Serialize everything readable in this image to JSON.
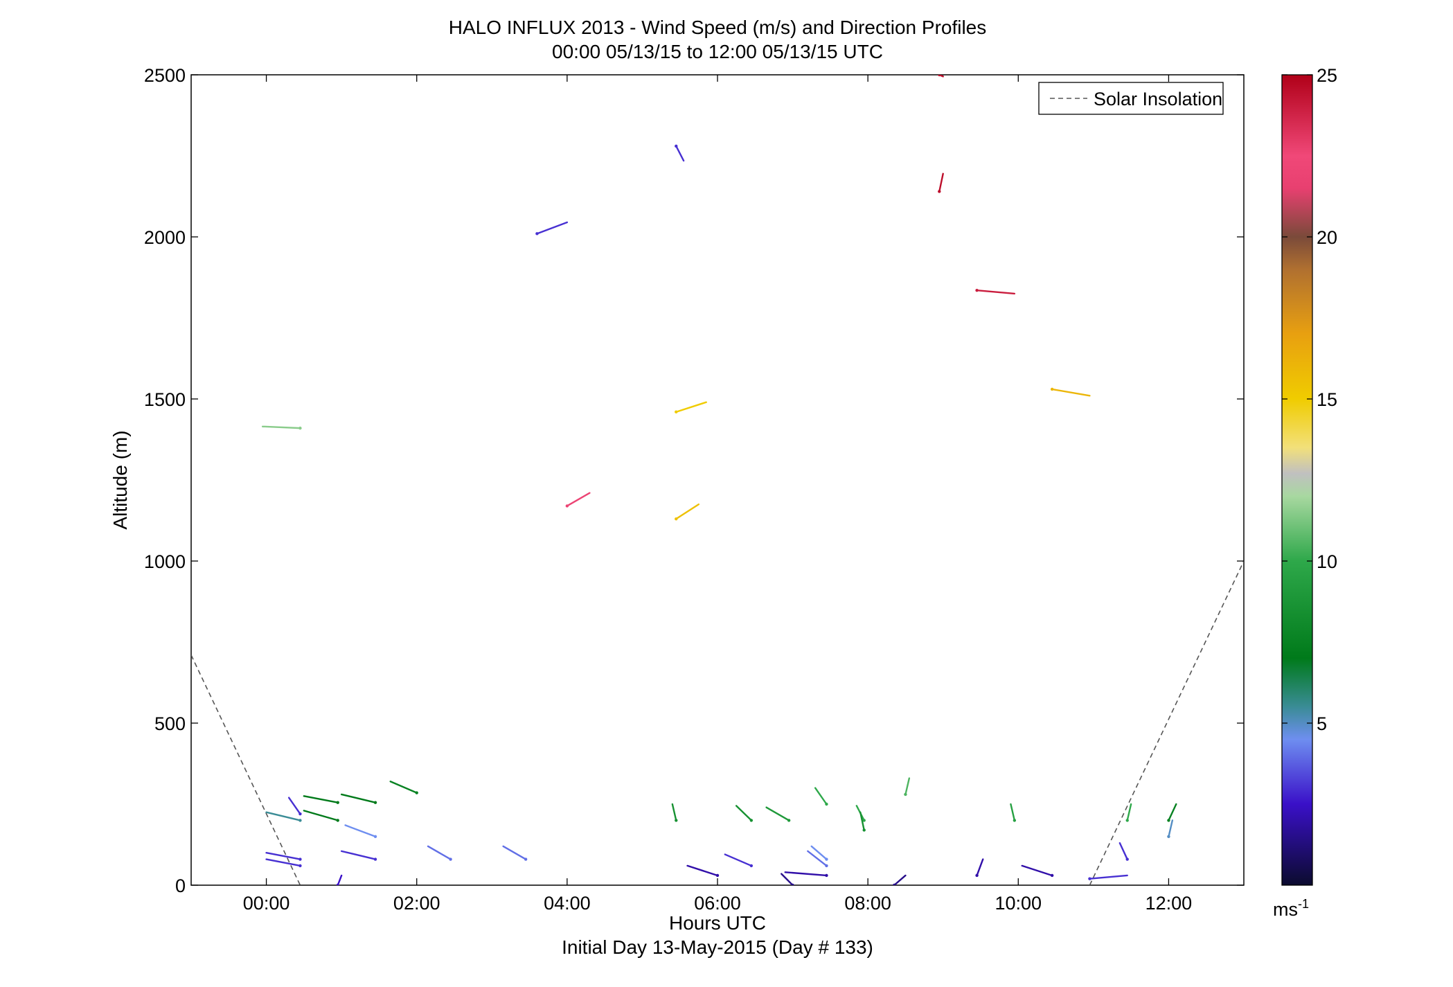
{
  "chart_data": {
    "type": "wind-barb-profile",
    "title": "HALO INFLUX 2013 - Wind Speed (m/s) and Direction Profiles",
    "subtitle": "00:00 05/13/15 to 12:00 05/13/15  UTC",
    "xlabel": "Hours UTC",
    "xlabel2": "Initial Day 13-May-2015 (Day # 133)",
    "ylabel": "Altitude (m)",
    "xlim": [
      -1,
      13
    ],
    "ylim": [
      0,
      2500
    ],
    "x_ticks": [
      0,
      2,
      4,
      6,
      8,
      10,
      12
    ],
    "x_tick_labels": [
      "00:00",
      "02:00",
      "04:00",
      "06:00",
      "08:00",
      "10:00",
      "12:00"
    ],
    "y_ticks": [
      0,
      500,
      1000,
      1500,
      2000,
      2500
    ],
    "y_tick_labels": [
      "0",
      "500",
      "1000",
      "1500",
      "2000",
      "2500"
    ],
    "grid": false,
    "legend": {
      "label": "Solar Insolation",
      "placement": "top-right",
      "style": "dashed",
      "color": "#555555"
    },
    "colorbar": {
      "range": [
        0,
        25
      ],
      "ticks": [
        5,
        10,
        15,
        20,
        25
      ],
      "tick_labels": [
        "5",
        "10",
        "15",
        "20",
        "25"
      ],
      "units": "ms-1",
      "stops": [
        {
          "value": 0,
          "color": "#0b0b2e"
        },
        {
          "value": 2.5,
          "color": "#3a10c8"
        },
        {
          "value": 4.5,
          "color": "#6e8ef0"
        },
        {
          "value": 5.5,
          "color": "#3a8c96"
        },
        {
          "value": 7,
          "color": "#007a1a"
        },
        {
          "value": 10,
          "color": "#2ea84a"
        },
        {
          "value": 12,
          "color": "#a8d8a0"
        },
        {
          "value": 12.7,
          "color": "#c0c0c0"
        },
        {
          "value": 13.5,
          "color": "#f2e07a"
        },
        {
          "value": 15,
          "color": "#f0cc00"
        },
        {
          "value": 17,
          "color": "#e8a010"
        },
        {
          "value": 19,
          "color": "#b07030"
        },
        {
          "value": 20,
          "color": "#7a4a3a"
        },
        {
          "value": 21.5,
          "color": "#e84070"
        },
        {
          "value": 22.5,
          "color": "#f04878"
        },
        {
          "value": 25,
          "color": "#b00018"
        }
      ]
    },
    "solar_insolation": [
      [
        [
          -1,
          710
        ],
        [
          0.45,
          0
        ]
      ],
      [
        [
          10.95,
          0
        ],
        [
          13,
          1000
        ]
      ]
    ],
    "barbs": [
      {
        "t": 0.45,
        "z": 1410,
        "dt": -0.5,
        "dz": 5,
        "speed": 11.5
      },
      {
        "t": 0.45,
        "z": 200,
        "dt": -0.45,
        "dz": 25,
        "speed": 5.5
      },
      {
        "t": 0.45,
        "z": 80,
        "dt": -0.45,
        "dz": 20,
        "speed": 3.0
      },
      {
        "t": 0.45,
        "z": 60,
        "dt": -0.45,
        "dz": 20,
        "speed": 3.0
      },
      {
        "t": 0.45,
        "z": 220,
        "dt": -0.15,
        "dz": 50,
        "speed": 3.0
      },
      {
        "t": 0.95,
        "z": 255,
        "dt": -0.45,
        "dz": 20,
        "speed": 7.0
      },
      {
        "t": 0.95,
        "z": 200,
        "dt": -0.45,
        "dz": 30,
        "speed": 7.0
      },
      {
        "t": 0.95,
        "z": 0,
        "dt": 0.05,
        "dz": 30,
        "speed": 2.5
      },
      {
        "t": 1.45,
        "z": 255,
        "dt": -0.45,
        "dz": 25,
        "speed": 7.0
      },
      {
        "t": 1.45,
        "z": 150,
        "dt": -0.4,
        "dz": 35,
        "speed": 4.5
      },
      {
        "t": 1.45,
        "z": 80,
        "dt": -0.45,
        "dz": 25,
        "speed": 3.0
      },
      {
        "t": 2.0,
        "z": 285,
        "dt": -0.35,
        "dz": 35,
        "speed": 7.5
      },
      {
        "t": 2.45,
        "z": 80,
        "dt": -0.3,
        "dz": 40,
        "speed": 4.0
      },
      {
        "t": 3.45,
        "z": 80,
        "dt": -0.3,
        "dz": 40,
        "speed": 4.0
      },
      {
        "t": 3.6,
        "z": 2010,
        "dt": 0.4,
        "dz": 35,
        "speed": 3.0
      },
      {
        "t": 4.0,
        "z": 1170,
        "dt": 0.3,
        "dz": 40,
        "speed": 22.0
      },
      {
        "t": 5.45,
        "z": 1460,
        "dt": 0.4,
        "dz": 30,
        "speed": 15.0
      },
      {
        "t": 5.45,
        "z": 1130,
        "dt": 0.3,
        "dz": 45,
        "speed": 15.5
      },
      {
        "t": 5.45,
        "z": 2280,
        "dt": 0.1,
        "dz": -45,
        "speed": 3.0
      },
      {
        "t": 5.45,
        "z": 200,
        "dt": -0.05,
        "dz": 50,
        "speed": 8.5
      },
      {
        "t": 6.0,
        "z": 30,
        "dt": -0.4,
        "dz": 30,
        "speed": 2.0
      },
      {
        "t": 6.45,
        "z": 200,
        "dt": -0.2,
        "dz": 45,
        "speed": 8.5
      },
      {
        "t": 6.45,
        "z": 60,
        "dt": -0.35,
        "dz": 35,
        "speed": 3.0
      },
      {
        "t": 6.95,
        "z": 200,
        "dt": -0.3,
        "dz": 40,
        "speed": 9.0
      },
      {
        "t": 7.0,
        "z": 0,
        "dt": -0.15,
        "dz": 35,
        "speed": 1.5
      },
      {
        "t": 7.45,
        "z": 250,
        "dt": -0.15,
        "dz": 50,
        "speed": 10.0
      },
      {
        "t": 7.45,
        "z": 80,
        "dt": -0.2,
        "dz": 40,
        "speed": 4.5
      },
      {
        "t": 7.45,
        "z": 60,
        "dt": -0.25,
        "dz": 45,
        "speed": 4.0
      },
      {
        "t": 7.45,
        "z": 30,
        "dt": -0.55,
        "dz": 10,
        "speed": 2.0
      },
      {
        "t": 7.95,
        "z": 200,
        "dt": -0.1,
        "dz": 45,
        "speed": 10.0
      },
      {
        "t": 7.95,
        "z": 170,
        "dt": -0.05,
        "dz": 55,
        "speed": 8.5
      },
      {
        "t": 8.35,
        "z": 0,
        "dt": 0.15,
        "dz": 30,
        "speed": 1.5
      },
      {
        "t": 8.5,
        "z": 280,
        "dt": 0.05,
        "dz": 50,
        "speed": 10.5
      },
      {
        "t": 8.95,
        "z": 2140,
        "dt": 0.05,
        "dz": 55,
        "speed": 24.5
      },
      {
        "t": 8.95,
        "z": 2500,
        "dt": 0.05,
        "dz": -5,
        "speed": 24.5
      },
      {
        "t": 9.45,
        "z": 30,
        "dt": 0.08,
        "dz": 50,
        "speed": 2.0
      },
      {
        "t": 9.45,
        "z": 1835,
        "dt": 0.5,
        "dz": -10,
        "speed": 24.0
      },
      {
        "t": 9.95,
        "z": 200,
        "dt": -0.05,
        "dz": 50,
        "speed": 9.5
      },
      {
        "t": 10.45,
        "z": 30,
        "dt": -0.4,
        "dz": 30,
        "speed": 2.0
      },
      {
        "t": 10.45,
        "z": 1530,
        "dt": 0.5,
        "dz": -20,
        "speed": 16.0
      },
      {
        "t": 10.95,
        "z": 20,
        "dt": 0.5,
        "dz": 10,
        "speed": 3.0
      },
      {
        "t": 11.45,
        "z": 200,
        "dt": 0.05,
        "dz": 50,
        "speed": 10.0
      },
      {
        "t": 11.45,
        "z": 80,
        "dt": -0.1,
        "dz": 50,
        "speed": 3.0
      },
      {
        "t": 12.0,
        "z": 150,
        "dt": 0.05,
        "dz": 50,
        "speed": 5.0
      },
      {
        "t": 12.0,
        "z": 200,
        "dt": 0.1,
        "dz": 50,
        "speed": 7.5
      }
    ]
  }
}
